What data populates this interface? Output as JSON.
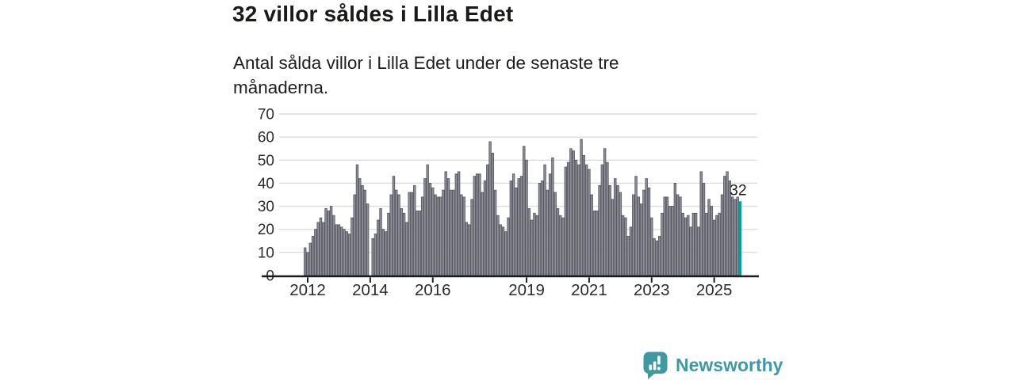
{
  "header": {
    "title": "32 villor såldes i Lilla Edet",
    "subtitle": "Antal sålda villor i Lilla Edet under de senaste tre månaderna."
  },
  "chart_data": {
    "type": "bar",
    "title": "32 villor såldes i Lilla Edet",
    "xlabel": "",
    "ylabel": "",
    "x_start": "2011-12",
    "frequency": "monthly",
    "ylim": [
      0,
      70
    ],
    "y_ticks": [
      0,
      10,
      20,
      30,
      40,
      50,
      60,
      70
    ],
    "grid": true,
    "x_ticks": [
      {
        "label": "2012",
        "month_index": 1
      },
      {
        "label": "2014",
        "month_index": 25
      },
      {
        "label": "2016",
        "month_index": 49
      },
      {
        "label": "2019",
        "month_index": 85
      },
      {
        "label": "2021",
        "month_index": 109
      },
      {
        "label": "2023",
        "month_index": 133
      },
      {
        "label": "2025",
        "month_index": 157
      }
    ],
    "values": [
      12,
      10,
      14,
      17,
      20,
      23,
      25,
      23,
      29,
      28,
      30,
      26,
      22,
      22,
      21,
      20,
      19,
      18,
      25,
      35,
      48,
      42,
      39,
      37,
      31,
      0,
      16,
      18,
      24,
      29,
      20,
      19,
      27,
      35,
      43,
      37,
      35,
      29,
      27,
      23,
      36,
      36,
      39,
      28,
      28,
      34,
      42,
      48,
      40,
      38,
      35,
      34,
      34,
      37,
      45,
      42,
      37,
      37,
      44,
      45,
      35,
      34,
      23,
      22,
      33,
      43,
      44,
      44,
      36,
      41,
      48,
      58,
      53,
      37,
      26,
      22,
      21,
      19,
      25,
      41,
      44,
      38,
      42,
      43,
      56,
      50,
      29,
      24,
      27,
      26,
      40,
      41,
      48,
      37,
      44,
      51,
      36,
      29,
      26,
      25,
      47,
      49,
      55,
      54,
      50,
      48,
      59,
      52,
      48,
      46,
      35,
      28,
      28,
      39,
      48,
      55,
      49,
      39,
      33,
      42,
      39,
      36,
      26,
      25,
      17,
      21,
      35,
      43,
      34,
      31,
      37,
      42,
      38,
      25,
      16,
      15,
      17,
      27,
      34,
      34,
      30,
      30,
      40,
      35,
      34,
      27,
      25,
      26,
      21,
      27,
      27,
      21,
      45,
      40,
      27,
      33,
      30,
      24,
      26,
      27,
      35,
      43,
      45,
      41,
      34,
      33,
      34,
      32
    ],
    "highlight_index": 167,
    "highlight_value_label": "32",
    "colors": {
      "bar": "#90909a",
      "bar_stroke": "#565660",
      "highlight": "#00a39b",
      "grid": "#dcdcdc",
      "axis": "#1d1d1b",
      "tick_text": "#2b2b2b",
      "annotation_text": "#1d1d1b"
    }
  },
  "footer": {
    "brand": "Newsworthy",
    "logo_icon": "newsworthy-speech-bubble-chart-icon",
    "brand_color": "#3e99a1"
  }
}
